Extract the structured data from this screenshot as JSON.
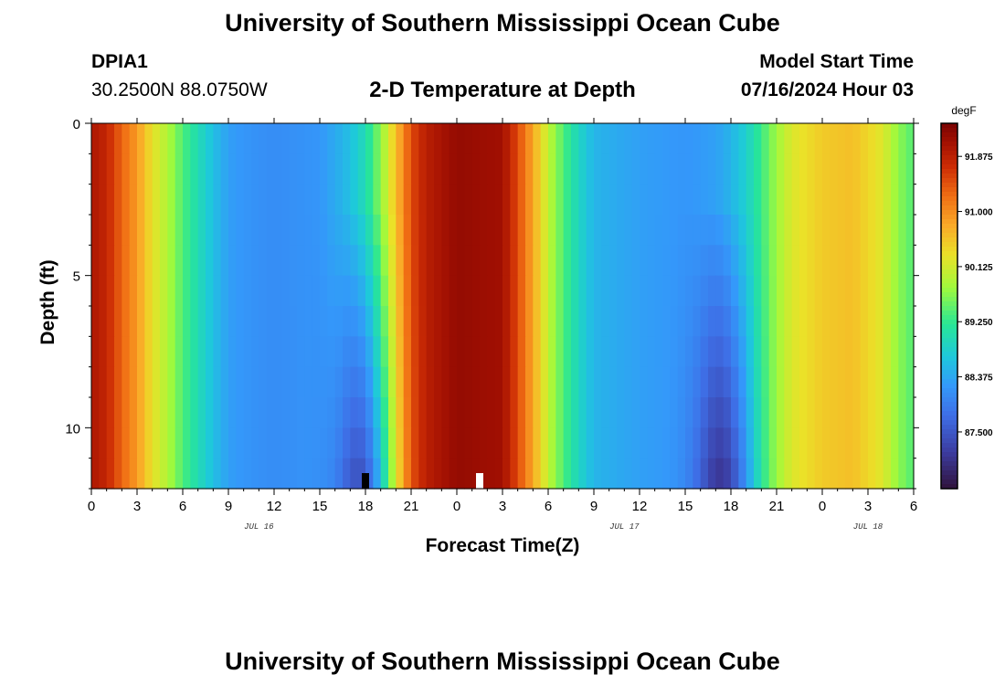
{
  "header": {
    "title": "University of Southern Mississippi Ocean Cube",
    "station_id": "DPIA1",
    "station_coords": "30.2500N  88.0750W",
    "subtitle": "2-D Temperature at Depth",
    "start_label": "Model Start Time",
    "start_value": "07/16/2024 Hour 03"
  },
  "footer": {
    "title": "University of Southern Mississippi Ocean Cube"
  },
  "chart_data": {
    "type": "heatmap",
    "xlabel": "Forecast Time(Z)",
    "ylabel": "Depth (ft)",
    "x_hours_range": [
      0,
      54
    ],
    "x_tick_hours": [
      0,
      3,
      6,
      9,
      12,
      15,
      18,
      21,
      24,
      27,
      30,
      33,
      36,
      39,
      42,
      45,
      48,
      51,
      54
    ],
    "x_tick_labels": [
      "0",
      "3",
      "6",
      "9",
      "12",
      "15",
      "18",
      "21",
      "0",
      "3",
      "6",
      "9",
      "12",
      "15",
      "18",
      "21",
      "0",
      "3",
      "6"
    ],
    "date_labels": [
      {
        "hour": 11,
        "text": "JUL 16"
      },
      {
        "hour": 35,
        "text": "JUL 17"
      },
      {
        "hour": 51,
        "text": "JUL 18"
      }
    ],
    "y_range_ft": [
      0,
      12
    ],
    "y_tick_values": [
      0,
      5,
      10
    ],
    "y_tick_labels": [
      "0",
      "5",
      "10"
    ],
    "colorbar": {
      "unit": "degF",
      "range": [
        86.6,
        92.4
      ],
      "tick_values": [
        91.875,
        91.0,
        90.125,
        89.25,
        88.375,
        87.5
      ],
      "tick_labels": [
        "91.875",
        "91.000",
        "90.125",
        "89.250",
        "88.375",
        "87.500"
      ]
    },
    "markers": [
      {
        "hour": 18,
        "kind": "black"
      },
      {
        "hour": 25.5,
        "kind": "white"
      }
    ],
    "time_profile_degF": [
      [
        0,
        92.0
      ],
      [
        1,
        91.8
      ],
      [
        2,
        91.3
      ],
      [
        3,
        90.9
      ],
      [
        4,
        90.3
      ],
      [
        5,
        89.9
      ],
      [
        6,
        89.4
      ],
      [
        7,
        89.0
      ],
      [
        8,
        88.6
      ],
      [
        9,
        88.3
      ],
      [
        10,
        88.2
      ],
      [
        12,
        88.1
      ],
      [
        15,
        88.2
      ],
      [
        17,
        88.6
      ],
      [
        18,
        89.0
      ],
      [
        19,
        89.7
      ],
      [
        20,
        90.6
      ],
      [
        21,
        91.5
      ],
      [
        22,
        91.9
      ],
      [
        24,
        92.2
      ],
      [
        27,
        92.1
      ],
      [
        28,
        91.5
      ],
      [
        29,
        90.8
      ],
      [
        30,
        90.0
      ],
      [
        31,
        89.4
      ],
      [
        32,
        88.9
      ],
      [
        33,
        88.5
      ],
      [
        36,
        88.3
      ],
      [
        39,
        88.2
      ],
      [
        41,
        88.3
      ],
      [
        42,
        88.5
      ],
      [
        43,
        88.8
      ],
      [
        44,
        89.3
      ],
      [
        45,
        89.8
      ],
      [
        46,
        90.2
      ],
      [
        48,
        90.5
      ],
      [
        50,
        90.6
      ],
      [
        52,
        90.2
      ],
      [
        53,
        89.7
      ],
      [
        54,
        89.4
      ]
    ],
    "cold_pockets": [
      {
        "center_hour": 18,
        "width_hours": 1.8,
        "max_drop_degF": 1.5
      },
      {
        "center_hour": 41.5,
        "width_hours": 1.8,
        "max_drop_degF": 1.3
      }
    ]
  }
}
